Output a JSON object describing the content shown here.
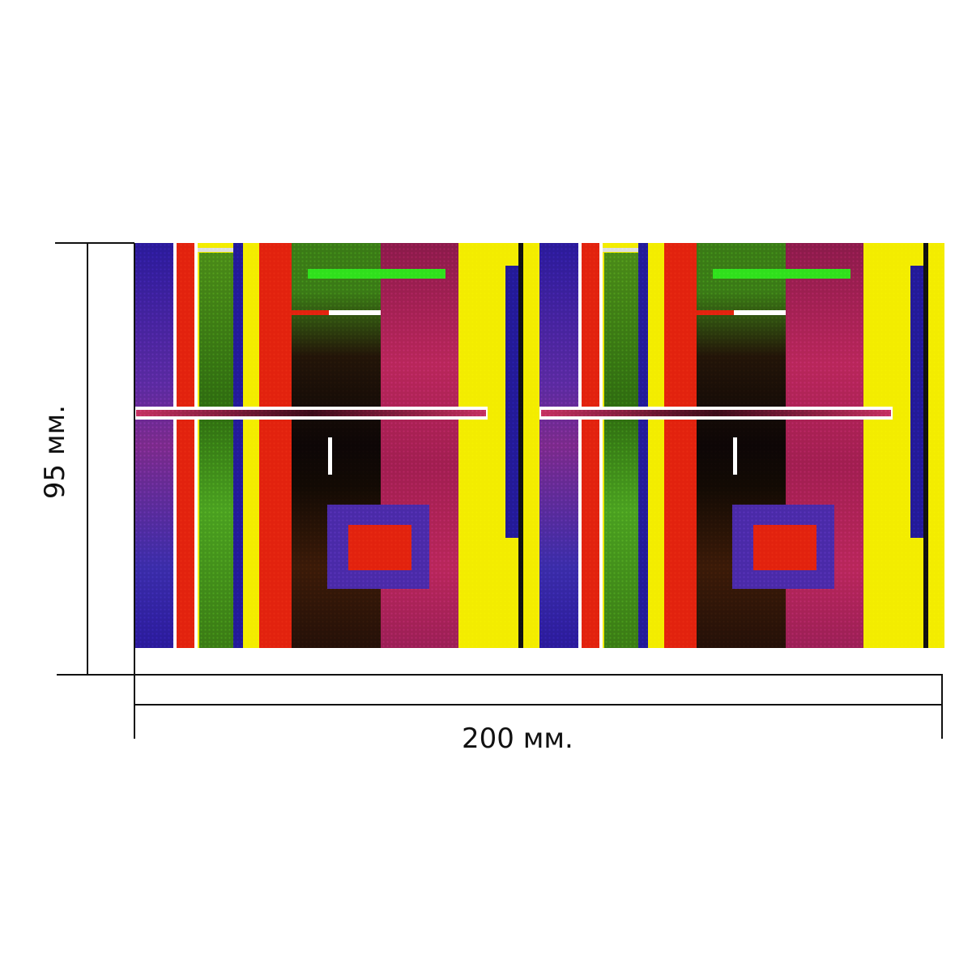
{
  "dimensions": {
    "width_label": "200 мм.",
    "height_label": "95 мм."
  },
  "pattern": {
    "colors": {
      "yellow": "#f3ec00",
      "red": "#e2220e",
      "blue": "#231a97",
      "green": "#3e8a18",
      "magenta": "#b8265a",
      "black": "#111111",
      "lime": "#2fe01c",
      "white": "#ffffff"
    },
    "repeat_count": 2
  }
}
